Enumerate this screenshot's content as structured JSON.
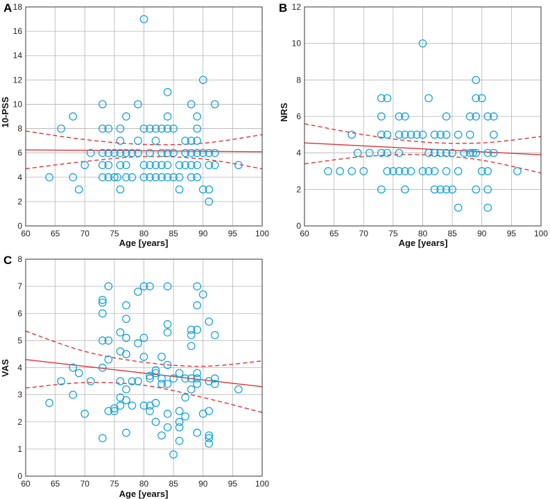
{
  "chart_data": [
    {
      "panel": "A",
      "type": "scatter",
      "xlabel": "Age [years]",
      "ylabel": "10-PSS",
      "xlim": [
        60,
        100
      ],
      "ylim": [
        0,
        18
      ],
      "xticks": [
        60,
        65,
        70,
        75,
        80,
        85,
        90,
        95,
        100
      ],
      "yticks": [
        0,
        2,
        4,
        6,
        8,
        10,
        12,
        14,
        16,
        18
      ],
      "grid": true,
      "fit_line": [
        [
          60,
          6.25
        ],
        [
          100,
          6.1
        ]
      ],
      "ci_upper": [
        [
          60,
          7.8
        ],
        [
          70,
          7.1
        ],
        [
          80,
          6.7
        ],
        [
          90,
          6.8
        ],
        [
          100,
          7.5
        ]
      ],
      "ci_lower": [
        [
          60,
          4.7
        ],
        [
          70,
          5.3
        ],
        [
          80,
          5.7
        ],
        [
          90,
          5.5
        ],
        [
          100,
          4.7
        ]
      ],
      "points": [
        [
          64,
          4
        ],
        [
          66,
          8
        ],
        [
          68,
          9
        ],
        [
          68,
          4
        ],
        [
          69,
          3
        ],
        [
          70,
          5
        ],
        [
          71,
          6
        ],
        [
          73,
          10
        ],
        [
          73,
          8
        ],
        [
          73,
          6
        ],
        [
          73,
          5
        ],
        [
          73,
          4
        ],
        [
          74,
          8
        ],
        [
          74,
          6
        ],
        [
          74,
          5
        ],
        [
          74,
          4
        ],
        [
          75,
          4
        ],
        [
          75,
          6
        ],
        [
          75.5,
          4
        ],
        [
          76,
          8
        ],
        [
          76,
          7
        ],
        [
          76,
          6
        ],
        [
          76,
          5
        ],
        [
          76,
          3
        ],
        [
          77,
          9
        ],
        [
          77,
          6
        ],
        [
          77,
          5
        ],
        [
          77,
          4
        ],
        [
          78,
          4
        ],
        [
          78,
          6
        ],
        [
          79,
          10
        ],
        [
          79,
          7
        ],
        [
          79,
          6
        ],
        [
          80,
          17
        ],
        [
          80,
          8
        ],
        [
          80,
          5
        ],
        [
          80,
          4
        ],
        [
          81,
          8
        ],
        [
          81,
          6
        ],
        [
          81,
          5
        ],
        [
          81,
          4
        ],
        [
          82,
          8
        ],
        [
          82,
          7
        ],
        [
          82,
          5
        ],
        [
          82,
          4
        ],
        [
          83,
          8
        ],
        [
          83,
          6
        ],
        [
          83,
          5
        ],
        [
          83,
          4
        ],
        [
          84,
          11
        ],
        [
          84,
          9
        ],
        [
          84,
          8
        ],
        [
          84,
          6
        ],
        [
          84,
          5
        ],
        [
          84,
          4
        ],
        [
          85,
          8
        ],
        [
          85,
          6
        ],
        [
          85,
          4
        ],
        [
          86,
          5
        ],
        [
          86,
          4
        ],
        [
          86,
          3
        ],
        [
          87,
          7
        ],
        [
          87,
          6
        ],
        [
          87,
          5
        ],
        [
          88,
          10
        ],
        [
          88,
          7
        ],
        [
          88,
          6
        ],
        [
          88,
          5
        ],
        [
          88,
          4
        ],
        [
          89,
          9
        ],
        [
          89,
          8
        ],
        [
          89,
          7
        ],
        [
          89,
          6
        ],
        [
          89,
          5
        ],
        [
          89,
          4
        ],
        [
          90,
          12
        ],
        [
          90,
          6
        ],
        [
          90,
          3
        ],
        [
          91,
          6
        ],
        [
          91,
          5
        ],
        [
          91,
          3
        ],
        [
          91,
          2
        ],
        [
          92,
          10
        ],
        [
          92,
          6
        ],
        [
          92,
          5
        ],
        [
          96,
          5
        ]
      ]
    },
    {
      "panel": "B",
      "type": "scatter",
      "xlabel": "Age [years]",
      "ylabel": "NRS",
      "xlim": [
        60,
        100
      ],
      "ylim": [
        0,
        12
      ],
      "xticks": [
        60,
        65,
        70,
        75,
        80,
        85,
        90,
        95,
        100
      ],
      "yticks": [
        0,
        2,
        4,
        6,
        8,
        10,
        12
      ],
      "grid": true,
      "fit_line": [
        [
          60,
          4.55
        ],
        [
          100,
          3.9
        ]
      ],
      "ci_upper": [
        [
          60,
          5.6
        ],
        [
          70,
          5.0
        ],
        [
          80,
          4.6
        ],
        [
          90,
          4.55
        ],
        [
          100,
          4.9
        ]
      ],
      "ci_lower": [
        [
          60,
          3.4
        ],
        [
          70,
          3.8
        ],
        [
          80,
          3.9
        ],
        [
          90,
          3.6
        ],
        [
          100,
          2.9
        ]
      ],
      "points": [
        [
          64,
          3
        ],
        [
          66,
          3
        ],
        [
          68,
          3
        ],
        [
          68,
          5
        ],
        [
          69,
          4
        ],
        [
          70,
          3
        ],
        [
          71,
          4
        ],
        [
          73,
          7
        ],
        [
          73,
          6
        ],
        [
          73,
          5
        ],
        [
          73,
          4
        ],
        [
          73,
          2
        ],
        [
          74,
          7
        ],
        [
          74,
          5
        ],
        [
          74,
          4
        ],
        [
          74,
          3
        ],
        [
          75,
          3
        ],
        [
          76,
          6
        ],
        [
          76,
          5
        ],
        [
          76,
          4
        ],
        [
          76,
          3
        ],
        [
          77,
          6
        ],
        [
          77,
          5
        ],
        [
          77,
          3
        ],
        [
          77,
          2
        ],
        [
          78,
          5
        ],
        [
          78,
          3
        ],
        [
          79,
          5
        ],
        [
          80,
          10
        ],
        [
          80,
          5
        ],
        [
          80,
          3
        ],
        [
          81,
          7
        ],
        [
          81,
          4
        ],
        [
          81,
          3
        ],
        [
          82,
          5
        ],
        [
          82,
          4
        ],
        [
          82,
          3
        ],
        [
          82,
          2
        ],
        [
          83,
          5
        ],
        [
          83,
          4
        ],
        [
          83,
          2
        ],
        [
          84,
          6
        ],
        [
          84,
          5
        ],
        [
          84,
          4
        ],
        [
          84,
          3
        ],
        [
          84,
          2
        ],
        [
          85,
          4
        ],
        [
          85,
          2
        ],
        [
          86,
          5
        ],
        [
          86,
          3
        ],
        [
          86,
          1
        ],
        [
          87,
          4
        ],
        [
          88,
          6
        ],
        [
          88,
          5
        ],
        [
          88,
          4
        ],
        [
          88.5,
          4
        ],
        [
          89,
          8
        ],
        [
          89,
          7
        ],
        [
          89,
          6
        ],
        [
          89,
          4
        ],
        [
          89,
          2
        ],
        [
          90,
          7
        ],
        [
          90,
          3
        ],
        [
          91,
          6
        ],
        [
          91,
          4
        ],
        [
          91,
          3
        ],
        [
          91,
          2
        ],
        [
          91,
          1
        ],
        [
          92,
          6
        ],
        [
          92,
          5
        ],
        [
          92,
          4
        ],
        [
          96,
          3
        ]
      ]
    },
    {
      "panel": "C",
      "type": "scatter",
      "xlabel": "Age [years]",
      "ylabel": "VAS",
      "xlim": [
        60,
        100
      ],
      "ylim": [
        0,
        8
      ],
      "xticks": [
        60,
        65,
        70,
        75,
        80,
        85,
        90,
        95,
        100
      ],
      "yticks": [
        0,
        1,
        2,
        3,
        4,
        5,
        6,
        7,
        8
      ],
      "grid": true,
      "fit_line": [
        [
          60,
          4.3
        ],
        [
          100,
          3.3
        ]
      ],
      "ci_upper": [
        [
          60,
          5.35
        ],
        [
          70,
          4.6
        ],
        [
          80,
          4.2
        ],
        [
          90,
          4.05
        ],
        [
          100,
          4.25
        ]
      ],
      "ci_lower": [
        [
          60,
          3.25
        ],
        [
          70,
          3.45
        ],
        [
          80,
          3.35
        ],
        [
          90,
          2.9
        ],
        [
          100,
          2.35
        ]
      ],
      "points": [
        [
          64,
          2.7
        ],
        [
          66,
          3.5
        ],
        [
          68,
          4.0
        ],
        [
          68,
          3.0
        ],
        [
          69,
          3.8
        ],
        [
          70,
          2.3
        ],
        [
          71,
          3.5
        ],
        [
          73,
          6.5
        ],
        [
          73,
          6.4
        ],
        [
          73,
          6.0
        ],
        [
          73,
          5.0
        ],
        [
          73,
          4.0
        ],
        [
          73,
          1.4
        ],
        [
          74,
          7.0
        ],
        [
          74,
          5.0
        ],
        [
          74,
          4.3
        ],
        [
          74,
          2.4
        ],
        [
          75,
          2.5
        ],
        [
          75,
          2.4
        ],
        [
          76,
          5.3
        ],
        [
          76,
          4.6
        ],
        [
          76,
          3.5
        ],
        [
          76,
          2.9
        ],
        [
          76,
          2.6
        ],
        [
          77,
          6.3
        ],
        [
          77,
          5.8
        ],
        [
          77,
          5.1
        ],
        [
          77,
          4.5
        ],
        [
          77,
          3.2
        ],
        [
          77,
          2.8
        ],
        [
          77,
          1.6
        ],
        [
          78,
          3.5
        ],
        [
          78,
          2.6
        ],
        [
          79,
          6.8
        ],
        [
          79,
          4.9
        ],
        [
          79,
          3.5
        ],
        [
          80,
          7.0
        ],
        [
          80,
          5.1
        ],
        [
          80,
          4.4
        ],
        [
          80,
          2.6
        ],
        [
          81,
          7.0
        ],
        [
          81,
          3.7
        ],
        [
          81,
          3.6
        ],
        [
          81,
          2.6
        ],
        [
          81,
          2.4
        ],
        [
          82,
          3.9
        ],
        [
          82,
          3.8
        ],
        [
          82,
          2.7
        ],
        [
          82,
          2.0
        ],
        [
          83,
          4.4
        ],
        [
          83,
          3.6
        ],
        [
          83,
          3.4
        ],
        [
          83,
          1.5
        ],
        [
          84,
          7.0
        ],
        [
          84,
          5.6
        ],
        [
          84,
          5.3
        ],
        [
          84,
          4.1
        ],
        [
          84,
          3.4
        ],
        [
          84,
          2.3
        ],
        [
          84,
          1.8
        ],
        [
          85,
          3.6
        ],
        [
          85,
          0.8
        ],
        [
          86,
          3.8
        ],
        [
          86,
          2.4
        ],
        [
          86,
          2.0
        ],
        [
          86,
          1.8
        ],
        [
          86,
          1.3
        ],
        [
          87,
          3.6
        ],
        [
          87,
          2.9
        ],
        [
          87,
          2.2
        ],
        [
          88,
          5.4
        ],
        [
          88,
          5.2
        ],
        [
          88,
          4.8
        ],
        [
          88,
          3.6
        ],
        [
          88,
          3.2
        ],
        [
          89,
          7.0
        ],
        [
          89,
          6.3
        ],
        [
          89,
          5.4
        ],
        [
          89,
          3.8
        ],
        [
          89,
          3.6
        ],
        [
          89,
          3.4
        ],
        [
          89,
          1.6
        ],
        [
          90,
          6.7
        ],
        [
          90,
          2.3
        ],
        [
          91,
          5.7
        ],
        [
          91,
          3.5
        ],
        [
          91,
          2.4
        ],
        [
          91,
          1.5
        ],
        [
          91,
          1.4
        ],
        [
          91,
          1.2
        ],
        [
          92,
          5.2
        ],
        [
          92,
          3.6
        ],
        [
          92,
          3.4
        ],
        [
          96,
          3.2
        ]
      ]
    }
  ]
}
